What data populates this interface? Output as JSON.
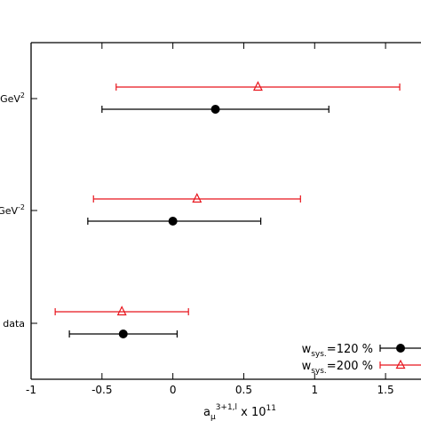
{
  "chart_data": {
    "type": "scatter",
    "orientation": "horizontal-error-bars",
    "xlabel": {
      "base": "a",
      "sub": "μ",
      "sup": "3+1,l",
      "tail": " x 10",
      "tail_sup": "11"
    },
    "xlim": [
      -1,
      1.75
    ],
    "xticks": [
      -1,
      -0.5,
      0,
      0.5,
      1,
      1.5
    ],
    "xtick_labels": [
      "-1",
      "-0.5",
      "0",
      "0.5",
      "1",
      "1.5"
    ],
    "grid": false,
    "legend_position": "bottom-right",
    "categories": [
      {
        "label": "GeV",
        "sup": "2"
      },
      {
        "label": "GeV",
        "sup": "-2"
      },
      {
        "label": "data",
        "sup": ""
      }
    ],
    "series": [
      {
        "legend": {
          "base": "w",
          "sub": "sys.",
          "tail": "=120 %"
        },
        "color": "#000000",
        "marker": "filled-circle",
        "points": [
          {
            "value": 0.3,
            "low": -0.5,
            "high": 1.1
          },
          {
            "value": 0.0,
            "low": -0.6,
            "high": 0.62
          },
          {
            "value": -0.35,
            "low": -0.73,
            "high": 0.03
          }
        ]
      },
      {
        "legend": {
          "base": "w",
          "sub": "sys.",
          "tail": "=200 %"
        },
        "color": "#e8141c",
        "marker": "open-triangle",
        "points": [
          {
            "value": 0.6,
            "low": -0.4,
            "high": 1.6
          },
          {
            "value": 0.17,
            "low": -0.56,
            "high": 0.9
          },
          {
            "value": -0.36,
            "low": -0.83,
            "high": 0.11
          }
        ]
      }
    ]
  }
}
